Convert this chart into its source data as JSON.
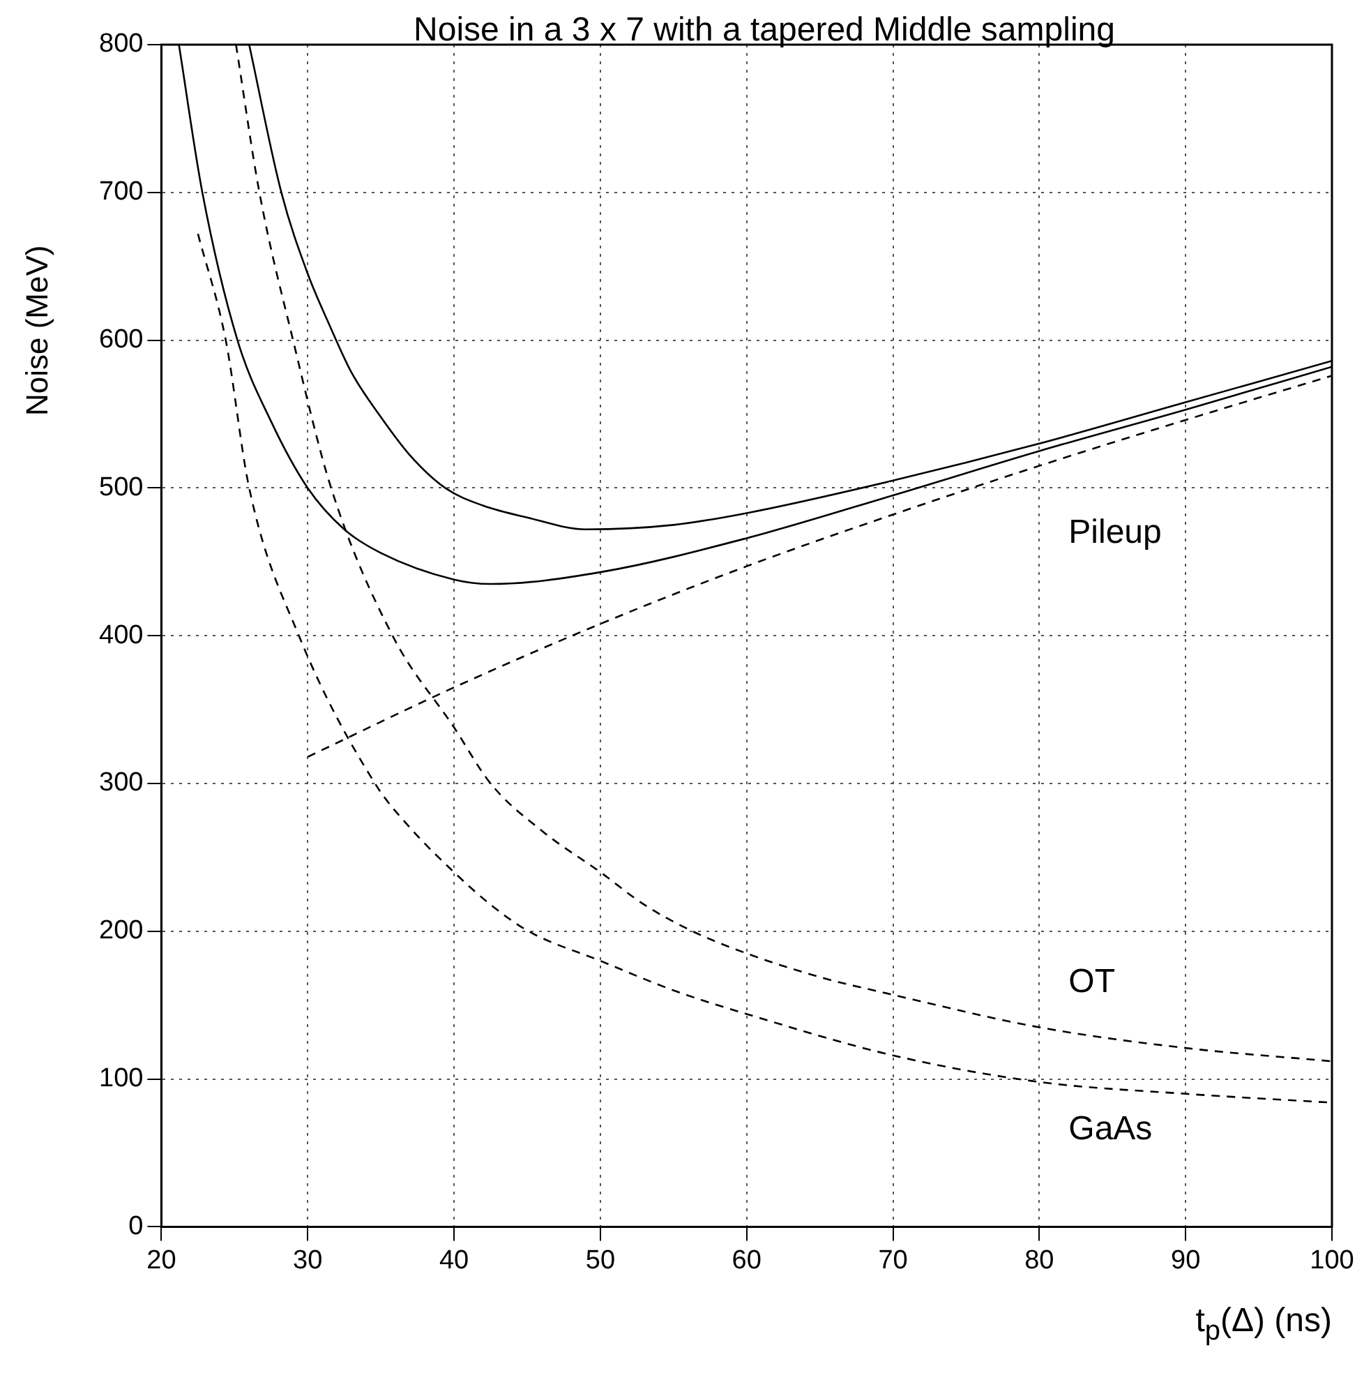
{
  "chart_data": {
    "type": "line",
    "title": "Noise in a 3 x 7 with a tapered Middle sampling",
    "xlabel": "t$_{p}$(Δ) (ns)",
    "ylabel": "Noise (MeV)",
    "xlim": [
      20,
      100
    ],
    "xticks": [
      20,
      30,
      40,
      50,
      60,
      70,
      80,
      90,
      100
    ],
    "ylim": [
      0,
      800
    ],
    "yticks": [
      0,
      100,
      200,
      300,
      400,
      500,
      600,
      700,
      800
    ],
    "grid": true,
    "marker": "none",
    "series": [
      {
        "color": "#000000",
        "line_style": "solid",
        "x": [
          26.0,
          28.2,
          30,
          31.5,
          33,
          35,
          37,
          39.4,
          42,
          45,
          49,
          55,
          60,
          70,
          80,
          90,
          100
        ],
        "values": [
          800,
          700,
          645,
          610,
          578,
          548,
          522,
          500,
          488,
          480,
          472,
          475,
          483,
          505,
          530,
          558,
          586
        ]
      },
      {
        "color": "#000000",
        "line_style": "solid",
        "x": [
          21.2,
          22.8,
          25.2,
          27.5,
          30,
          32.5,
          35,
          40,
          42.5,
          50,
          60,
          70,
          80,
          90,
          100
        ],
        "values": [
          800,
          700,
          600,
          545,
          500,
          472,
          456,
          438,
          435,
          443,
          466,
          495,
          525,
          553,
          582
        ]
      },
      {
        "name": "Pileup",
        "color": "#000000",
        "line_style": "dashed",
        "x": [
          30,
          40,
          50,
          60,
          70,
          80,
          90,
          100
        ],
        "values": [
          318,
          365,
          408,
          447,
          482,
          515,
          546,
          576
        ]
      },
      {
        "name": "OT",
        "color": "#000000",
        "line_style": "dashed",
        "x": [
          25.1,
          26.7,
          29,
          31.6,
          35.8,
          40,
          42.5,
          46,
          50,
          53,
          56.3,
          60,
          65,
          70,
          80,
          90,
          100
        ],
        "values": [
          800,
          700,
          600,
          500,
          400,
          338,
          300,
          268,
          240,
          218,
          200,
          185,
          169,
          157,
          135,
          121,
          112
        ]
      },
      {
        "name": "GaAs",
        "color": "#000000",
        "line_style": "dashed",
        "x": [
          22.5,
          24.4,
          26,
          29.4,
          34.6,
          37,
          40,
          42.5,
          45.1,
          50,
          55,
          60,
          70,
          80,
          90,
          100
        ],
        "values": [
          672,
          600,
          500,
          400,
          300,
          270,
          240,
          218,
          200,
          180,
          160,
          144,
          116,
          98,
          90,
          84
        ]
      }
    ]
  }
}
